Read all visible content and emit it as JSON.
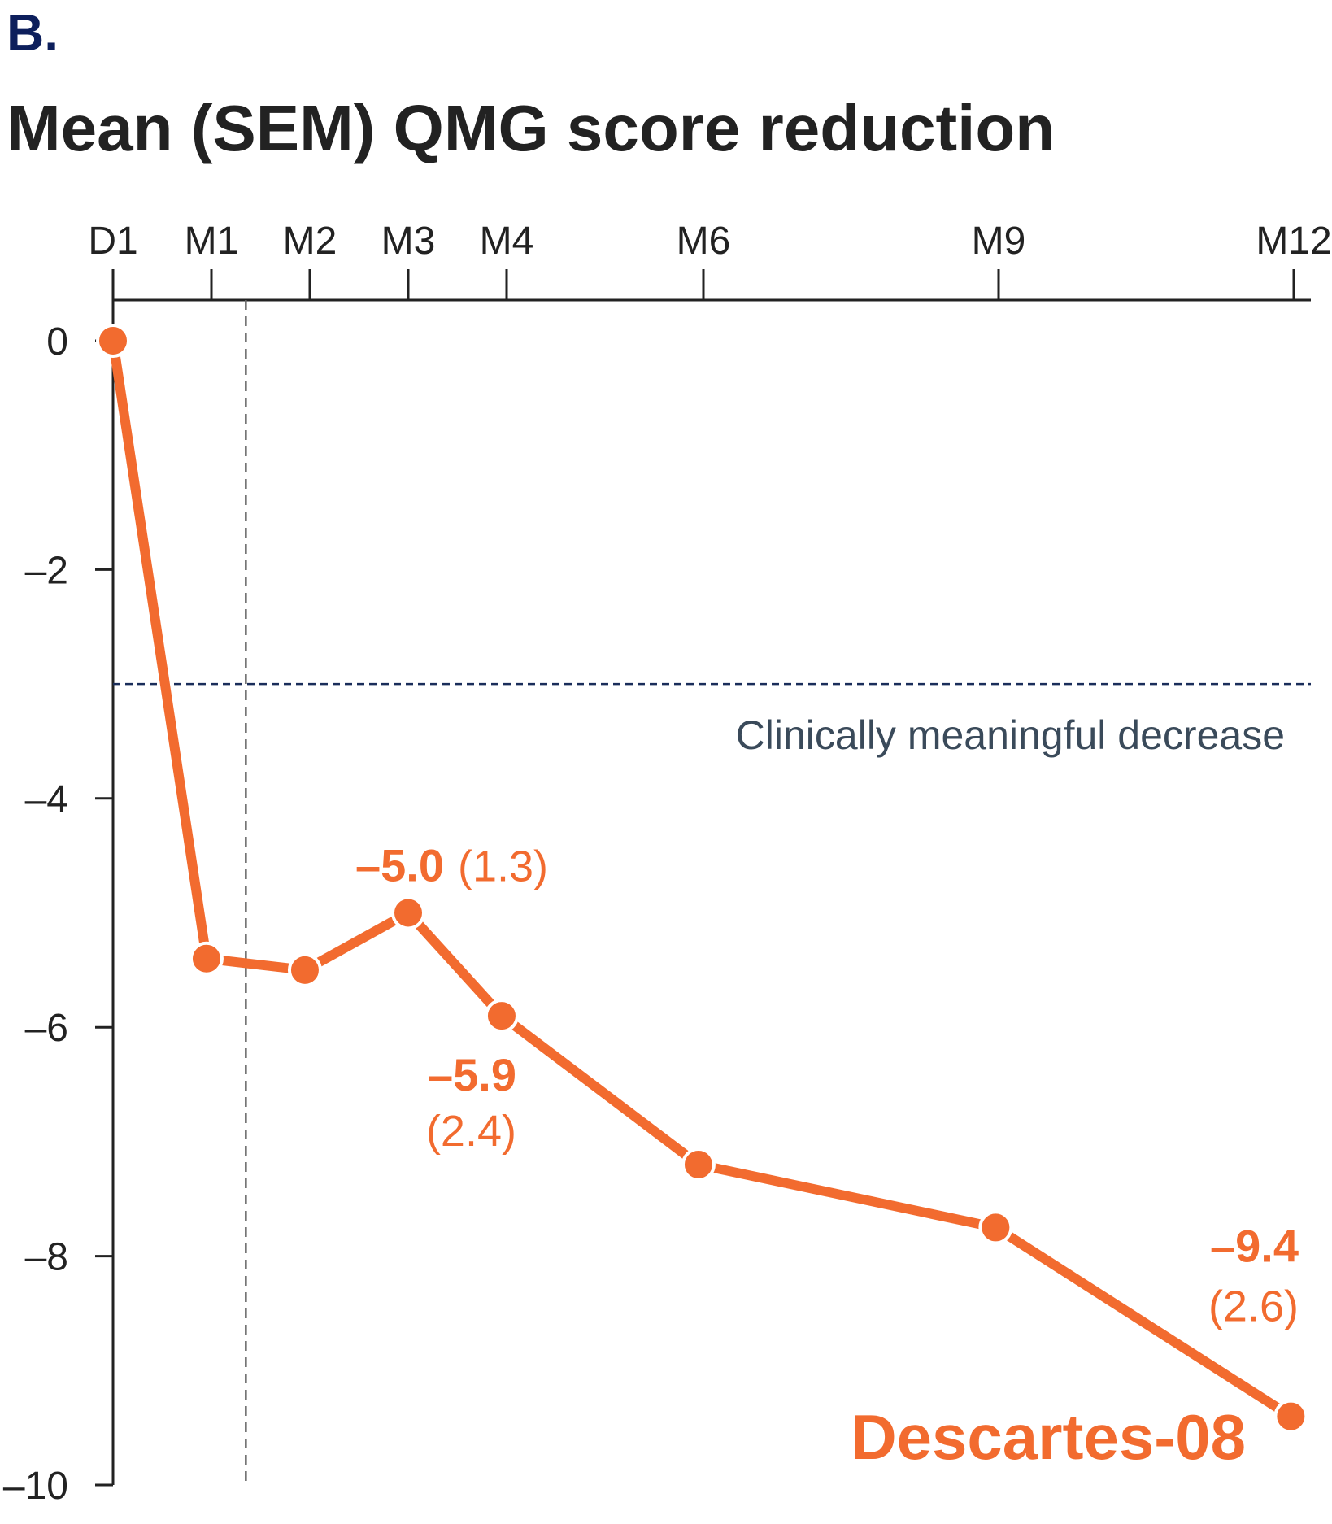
{
  "panel_label": "B.",
  "chart_data": {
    "type": "line",
    "title": "Mean (SEM) QMG score reduction",
    "xlabel": "",
    "ylabel": "",
    "ylim": [
      -10,
      0
    ],
    "y_ticks": [
      {
        "value": 0,
        "label": "0"
      },
      {
        "value": -2,
        "label": "–2"
      },
      {
        "value": -4,
        "label": "–4"
      },
      {
        "value": -6,
        "label": "–6"
      },
      {
        "value": -8,
        "label": "–8"
      },
      {
        "value": -10,
        "label": "–10"
      }
    ],
    "x_ticks": [
      {
        "month": 0,
        "label": "D1"
      },
      {
        "month": 1,
        "label": "M1"
      },
      {
        "month": 2,
        "label": "M2"
      },
      {
        "month": 3,
        "label": "M3"
      },
      {
        "month": 4,
        "label": "M4"
      },
      {
        "month": 6,
        "label": "M6"
      },
      {
        "month": 9,
        "label": "M9"
      },
      {
        "month": 12,
        "label": "M12"
      }
    ],
    "x_axis_position": "top",
    "grid": false,
    "series": [
      {
        "name": "Descartes-08",
        "color": "#f26b2f",
        "x": [
          0,
          0.95,
          1.95,
          3.0,
          3.95,
          5.95,
          8.97,
          11.97
        ],
        "values": [
          0,
          -5.4,
          -5.5,
          -5.0,
          -5.9,
          -7.2,
          -7.75,
          -9.4
        ]
      }
    ],
    "reference_lines": [
      {
        "orientation": "horizontal",
        "value": -3,
        "label": "Clinically meaningful decrease",
        "color": "#1a2d5a",
        "style": "dashed"
      },
      {
        "orientation": "vertical",
        "month": 1.35,
        "label": "",
        "color": "#666666",
        "style": "dashed"
      }
    ],
    "annotations": [
      {
        "month": 3,
        "value_label": "–5.0",
        "sem_label": "(1.3)"
      },
      {
        "month": 4,
        "value_label": "–5.9",
        "sem_label": "(2.4)"
      },
      {
        "month": 12,
        "value_label": "–9.4",
        "sem_label": "(2.6)"
      }
    ],
    "legend": "bottom-right",
    "series_label": "Descartes-08"
  }
}
